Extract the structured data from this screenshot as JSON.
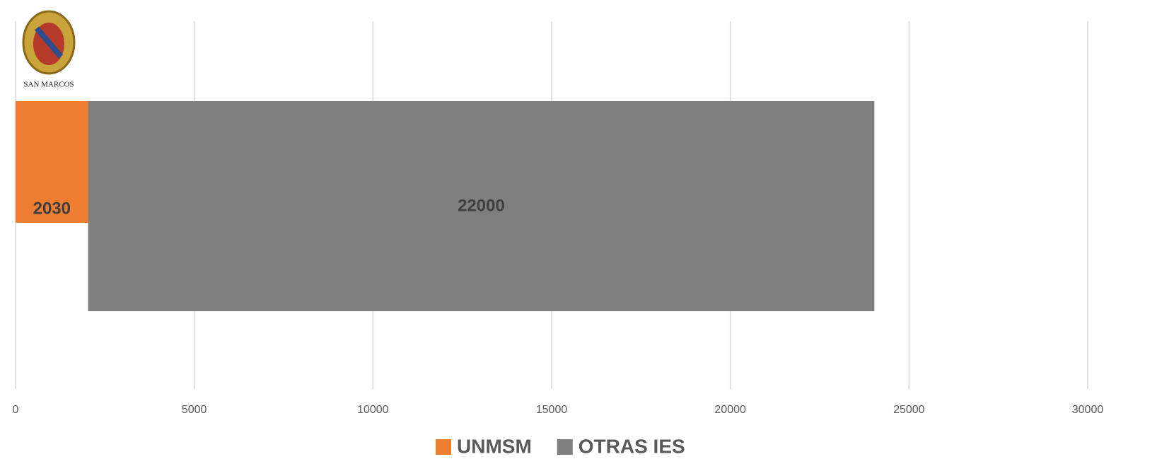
{
  "logo": {
    "text": "SAN MARCOS"
  },
  "chart_data": {
    "type": "bar",
    "orientation": "horizontal",
    "stacked": true,
    "categories": [
      null
    ],
    "series": [
      {
        "name": "UNMSM",
        "color": "#ed7d31",
        "values": [
          2030
        ]
      },
      {
        "name": "OTRAS IES",
        "color": "#7f7f7f",
        "values": [
          22000
        ]
      }
    ],
    "xlim": [
      0,
      30000
    ],
    "xticks": [
      0,
      5000,
      10000,
      15000,
      20000,
      25000,
      30000
    ],
    "grid": true,
    "legend": "bottom"
  }
}
